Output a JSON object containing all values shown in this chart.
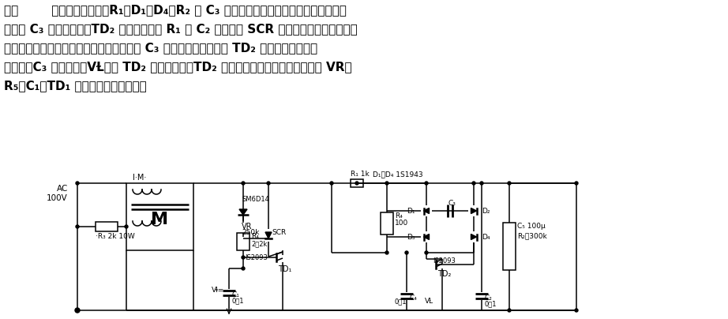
{
  "background_color": "#ffffff",
  "fig_width": 9.22,
  "fig_height": 4.04,
  "dpi": 100,
  "text_line1": "图：        所示控制电路中，R₁、D₁～D₄、R₂ 和 C₃ 组成启动补偿电路。启动时由于大容量",
  "text_line2": "电容器 C₃ 的充电过程，TD₂ 的转折电压由 R₁ 和 C₂ 决定，为 SCR 提供触发脉冲，用超前相",
  "text_line3": "位使其导通，为电动机提供启动电流。随着 C₃ 充电电压升高，来自 TD₂ 的触发脉冲相位逐",
  "text_line4": "渐滞后。C₃ 充电结束，VⱢ小于 TD₂ 的转折电压，TD₂ 不再提供触发脉冲，电动机将由 VR、",
  "text_line5": "R₅、C₁、TD₁ 所决定的相位而运转。"
}
